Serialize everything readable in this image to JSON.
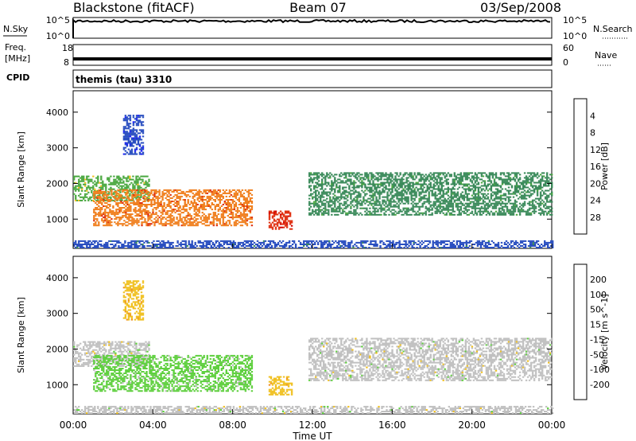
{
  "header": {
    "station": "Blackstone (fitACF)",
    "beam": "Beam 07",
    "date": "03/Sep/2008"
  },
  "panels": {
    "nsky": {
      "label": "N.Sky",
      "ticks": [
        "10^5",
        "10^0"
      ],
      "right_label": "N.Search",
      "right_ticks": [
        "10^5",
        "10^0"
      ]
    },
    "freq": {
      "label_lines": [
        "Freq.",
        "[MHz]"
      ],
      "ticks": [
        "18",
        "8"
      ],
      "right_label": "Nave",
      "right_ticks": [
        "60",
        "0"
      ]
    },
    "cpid": {
      "label": "CPID",
      "value": "themis (tau) 3310"
    }
  },
  "chart_data": [
    {
      "type": "heatmap",
      "title": "",
      "xlabel": "Time UT",
      "ylabel": "Slant Range [km]",
      "xlim": [
        "00:00",
        "24:00"
      ],
      "x_ticks": [
        "00:00",
        "04:00",
        "08:00",
        "12:00",
        "16:00",
        "20:00",
        "00:00"
      ],
      "ylim": [
        180,
        4600
      ],
      "y_ticks": [
        1000,
        2000,
        3000,
        4000
      ],
      "colorbar": {
        "label": "Power [dB]",
        "ticks": [
          4,
          8,
          12,
          16,
          20,
          24,
          28
        ],
        "range": [
          0,
          30
        ],
        "colors": [
          "#1a1aff",
          "#2a4fc0",
          "#3a8a5a",
          "#4aa840",
          "#f0c020",
          "#f08020",
          "#e03010",
          "#d00000"
        ]
      },
      "echo_regions": [
        {
          "name": "early-band",
          "t_start": 0.0,
          "t_end": 3.8,
          "range_start": 1500,
          "range_end": 2200,
          "value": 14
        },
        {
          "name": "descending-band",
          "t_start": 1.0,
          "t_end": 9.0,
          "range_start": 800,
          "range_end": 1800,
          "value": 22
        },
        {
          "name": "tongue",
          "t_start": 2.5,
          "t_end": 3.5,
          "range_start": 2800,
          "range_end": 3900,
          "value": 4
        },
        {
          "name": "post-noon-band",
          "t_start": 9.8,
          "t_end": 11.0,
          "range_start": 700,
          "range_end": 1200,
          "value": 26
        },
        {
          "name": "afternoon-band",
          "t_start": 11.8,
          "t_end": 24.0,
          "range_start": 1100,
          "range_end": 2300,
          "value": 10
        },
        {
          "name": "ground-scatter-bottom",
          "t_start": 0.0,
          "t_end": 24.0,
          "range_start": 180,
          "range_end": 400,
          "value": 6
        }
      ]
    },
    {
      "type": "heatmap",
      "title": "",
      "xlabel": "Time UT",
      "ylabel": "Slant Range [km]",
      "xlim": [
        "00:00",
        "24:00"
      ],
      "x_ticks": [
        "00:00",
        "04:00",
        "08:00",
        "12:00",
        "16:00",
        "20:00",
        "00:00"
      ],
      "ylim": [
        180,
        4600
      ],
      "y_ticks": [
        1000,
        2000,
        3000,
        4000
      ],
      "colorbar": {
        "label": "Velocity [m s^-1]",
        "ticks": [
          200,
          100,
          50,
          15,
          -15,
          -50,
          -100,
          -200
        ],
        "range": [
          -250,
          250
        ],
        "colors": [
          "#2a4fc0",
          "#3a7a8a",
          "#4a9a50",
          "#60d040",
          "#c0c0c0",
          "#f0c020",
          "#f09020",
          "#f05020",
          "#e01010"
        ]
      },
      "echo_regions": [
        {
          "name": "early-band",
          "t_start": 0.0,
          "t_end": 3.8,
          "range_start": 1500,
          "range_end": 2200,
          "value": 0
        },
        {
          "name": "descending-band",
          "t_start": 1.0,
          "t_end": 9.0,
          "range_start": 800,
          "range_end": 1800,
          "value": 40
        },
        {
          "name": "tongue",
          "t_start": 2.5,
          "t_end": 3.5,
          "range_start": 2800,
          "range_end": 3900,
          "value": -80
        },
        {
          "name": "post-noon-band",
          "t_start": 9.8,
          "t_end": 11.0,
          "range_start": 700,
          "range_end": 1200,
          "value": -70
        },
        {
          "name": "afternoon-band",
          "t_start": 11.8,
          "t_end": 24.0,
          "range_start": 1100,
          "range_end": 2300,
          "value": 0
        },
        {
          "name": "ground-scatter-bottom",
          "t_start": 0.0,
          "t_end": 24.0,
          "range_start": 180,
          "range_end": 400,
          "value": 0
        }
      ]
    }
  ]
}
